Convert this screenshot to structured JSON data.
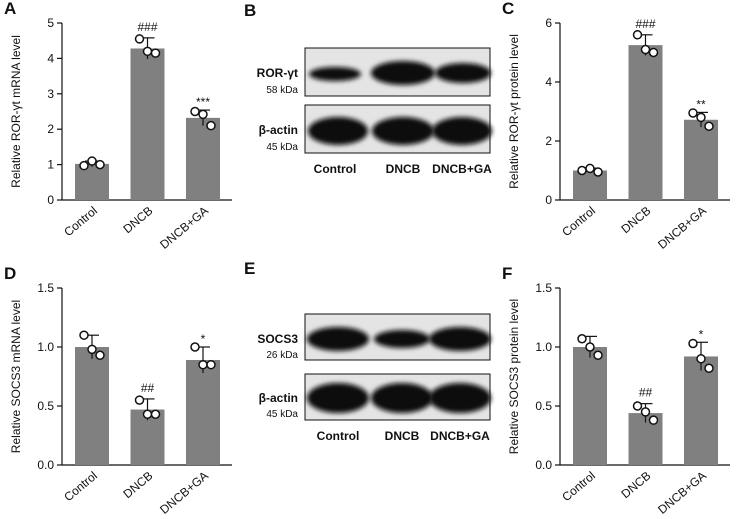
{
  "chart_data": [
    {
      "type": "bar",
      "panel": "A",
      "y_label": "Relative ROR-γt mRNA level",
      "categories": [
        "Control",
        "DNCB",
        "DNCB+GA"
      ],
      "values": [
        1.02,
        4.28,
        2.32
      ],
      "errors": [
        0.08,
        0.3,
        0.22
      ],
      "points": [
        [
          0.97,
          1.1,
          1.0
        ],
        [
          4.55,
          4.2,
          4.15
        ],
        [
          2.5,
          2.42,
          2.1
        ]
      ],
      "significance": [
        null,
        "###",
        "***"
      ],
      "color": "#808080",
      "ylim": [
        0,
        5
      ],
      "yticks": [
        0,
        1,
        2,
        3,
        4,
        5
      ]
    },
    {
      "type": "bar",
      "panel": "C",
      "y_label": "Relative ROR-γt protein level",
      "categories": [
        "Control",
        "DNCB",
        "DNCB+GA"
      ],
      "values": [
        1.0,
        5.25,
        2.72
      ],
      "errors": [
        0.08,
        0.35,
        0.25
      ],
      "points": [
        [
          1.0,
          1.07,
          0.95
        ],
        [
          5.6,
          5.1,
          5.0
        ],
        [
          2.95,
          2.8,
          2.5
        ]
      ],
      "significance": [
        null,
        "###",
        "**"
      ],
      "color": "#808080",
      "ylim": [
        0,
        6
      ],
      "yticks": [
        0,
        2,
        4,
        6
      ]
    },
    {
      "type": "bar",
      "panel": "D",
      "y_label": "Relative SOCS3 mRNA level",
      "categories": [
        "Control",
        "DNCB",
        "DNCB+GA"
      ],
      "values": [
        1.0,
        0.47,
        0.89
      ],
      "errors": [
        0.1,
        0.09,
        0.11
      ],
      "points": [
        [
          1.1,
          0.98,
          0.93
        ],
        [
          0.55,
          0.43,
          0.43
        ],
        [
          1.0,
          0.85,
          0.85
        ]
      ],
      "significance": [
        null,
        "##",
        "*"
      ],
      "color": "#808080",
      "ylim": [
        0,
        1.5
      ],
      "yticks": [
        {
          "value": 0,
          "label": "0.0"
        },
        0.5,
        {
          "value": 1,
          "label": "1.0"
        },
        1.5
      ]
    },
    {
      "type": "bar",
      "panel": "F",
      "y_label": "Relative SOCS3 protein level",
      "categories": [
        "Control",
        "DNCB",
        "DNCB+GA"
      ],
      "values": [
        1.0,
        0.44,
        0.92
      ],
      "errors": [
        0.09,
        0.08,
        0.12
      ],
      "points": [
        [
          1.07,
          1.0,
          0.93
        ],
        [
          0.5,
          0.45,
          0.38
        ],
        [
          1.03,
          0.9,
          0.82
        ]
      ],
      "significance": [
        null,
        "##",
        "*"
      ],
      "color": "#808080",
      "ylim": [
        0,
        1.5
      ],
      "yticks": [
        {
          "value": 0,
          "label": "0.0"
        },
        0.5,
        {
          "value": 1,
          "label": "1.0"
        },
        1.5
      ]
    }
  ],
  "blots": [
    {
      "panel": "B",
      "rows": [
        {
          "label": "ROR-γt",
          "size": "58 kDa"
        },
        {
          "label": "β-actin",
          "size": "45 kDa"
        }
      ],
      "lanes": [
        "Control",
        "DNCB",
        "DNCB+GA"
      ]
    },
    {
      "panel": "E",
      "rows": [
        {
          "label": "SOCS3",
          "size": "26 kDa"
        },
        {
          "label": "β-actin",
          "size": "45 kDa"
        }
      ],
      "lanes": [
        "Control",
        "DNCB",
        "DNCB+GA"
      ]
    }
  ]
}
